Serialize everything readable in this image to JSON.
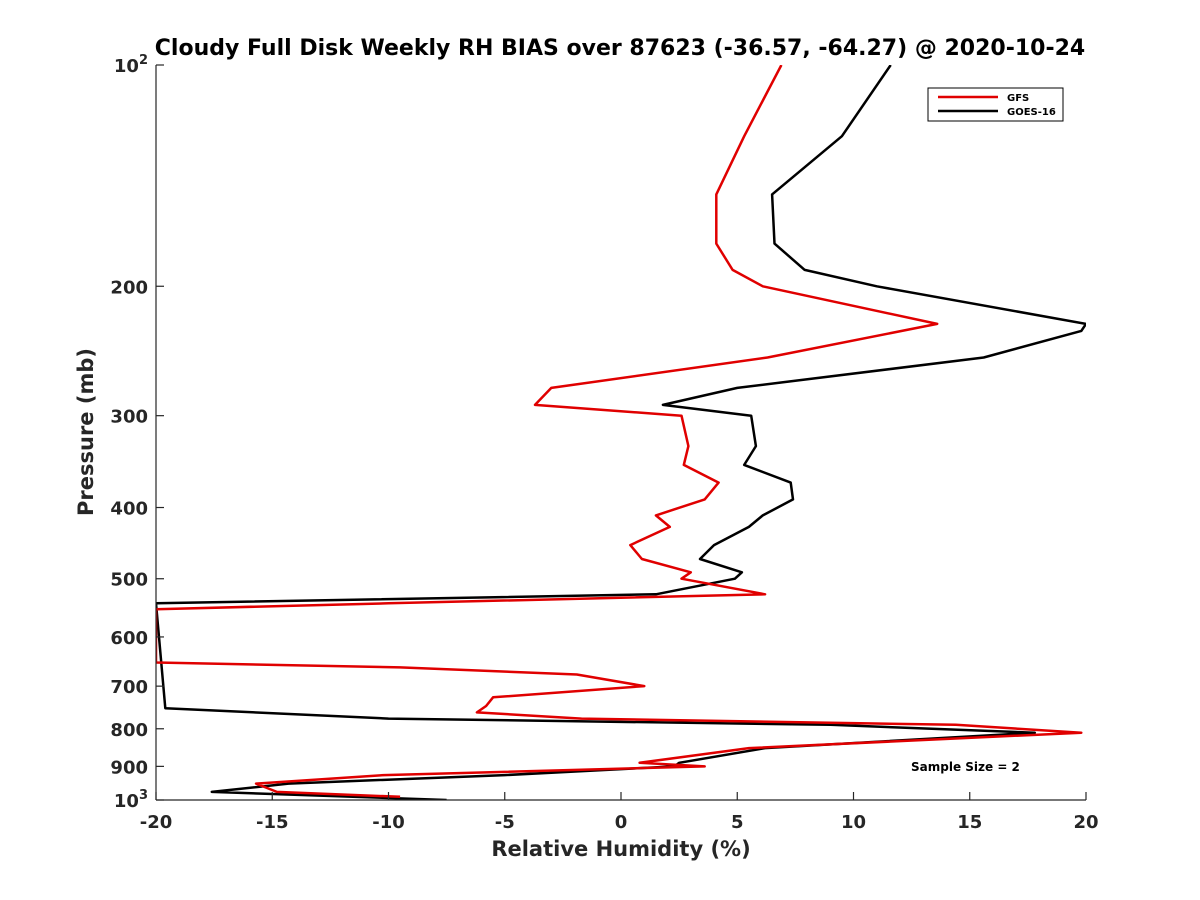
{
  "chart_data": {
    "type": "line",
    "title": "Cloudy Full Disk Weekly RH BIAS over 87623 (-36.57, -64.27) @ 2020-10-24",
    "xlabel": "Relative Humidity (%)",
    "ylabel": "Pressure (mb)",
    "xlim": [
      -20,
      20
    ],
    "ylim": [
      100,
      1000
    ],
    "y_scale": "log",
    "y_reversed": true,
    "grid": false,
    "legend_position": "top-right",
    "x_ticks": [
      "-20",
      "-15",
      "-10",
      "-5",
      "0",
      "5",
      "10",
      "15",
      "20"
    ],
    "y_ticks": [
      {
        "value": 100,
        "base": "10",
        "exp": "2"
      },
      {
        "value": 200,
        "label": "200"
      },
      {
        "value": 300,
        "label": "300"
      },
      {
        "value": 400,
        "label": "400"
      },
      {
        "value": 500,
        "label": "500"
      },
      {
        "value": 600,
        "label": "600"
      },
      {
        "value": 700,
        "label": "700"
      },
      {
        "value": 800,
        "label": "800"
      },
      {
        "value": 900,
        "label": "900"
      },
      {
        "value": 1000,
        "base": "10",
        "exp": "3"
      }
    ],
    "annotation": "Sample Size = 2",
    "series": [
      {
        "name": "GFS",
        "color": "#e00000",
        "points": [
          [
            6.9,
            100
          ],
          [
            5.3,
            125
          ],
          [
            4.1,
            150
          ],
          [
            4.1,
            175
          ],
          [
            4.8,
            190
          ],
          [
            6.1,
            200
          ],
          [
            13.6,
            225
          ],
          [
            6.3,
            250
          ],
          [
            -3.0,
            275
          ],
          [
            -3.7,
            290
          ],
          [
            2.6,
            300
          ],
          [
            2.9,
            330
          ],
          [
            2.7,
            350
          ],
          [
            4.2,
            370
          ],
          [
            3.6,
            390
          ],
          [
            1.5,
            410
          ],
          [
            2.1,
            425
          ],
          [
            0.4,
            450
          ],
          [
            0.9,
            470
          ],
          [
            3.0,
            490
          ],
          [
            2.6,
            500
          ],
          [
            6.2,
            525
          ],
          [
            -10.0,
            540
          ],
          [
            -20,
            550
          ],
          [
            -20,
            650
          ],
          [
            -9.5,
            660
          ],
          [
            -1.9,
            675
          ],
          [
            1.0,
            700
          ],
          [
            -5.5,
            725
          ],
          [
            -5.8,
            745
          ],
          [
            -6.2,
            760
          ],
          [
            -1.7,
            775
          ],
          [
            14.4,
            790
          ],
          [
            19.8,
            810
          ],
          [
            5.5,
            850
          ],
          [
            0.8,
            890
          ],
          [
            3.6,
            900
          ],
          [
            -10.2,
            925
          ],
          [
            -15.7,
            950
          ],
          [
            -14.8,
            975
          ],
          [
            -9.5,
            990
          ]
        ]
      },
      {
        "name": "GOES-16",
        "color": "#000000",
        "points": [
          [
            11.6,
            100
          ],
          [
            9.5,
            125
          ],
          [
            6.5,
            150
          ],
          [
            6.6,
            175
          ],
          [
            7.9,
            190
          ],
          [
            11.0,
            200
          ],
          [
            20.0,
            225
          ],
          [
            19.8,
            230
          ],
          [
            15.6,
            250
          ],
          [
            5.0,
            275
          ],
          [
            1.8,
            290
          ],
          [
            5.6,
            300
          ],
          [
            5.8,
            330
          ],
          [
            5.3,
            350
          ],
          [
            7.3,
            370
          ],
          [
            7.4,
            390
          ],
          [
            6.1,
            410
          ],
          [
            5.5,
            425
          ],
          [
            4.0,
            450
          ],
          [
            3.4,
            470
          ],
          [
            5.2,
            490
          ],
          [
            4.9,
            500
          ],
          [
            1.5,
            525
          ],
          [
            -20,
            540
          ],
          [
            -19.6,
            750
          ],
          [
            -10.0,
            775
          ],
          [
            9.0,
            790
          ],
          [
            17.8,
            810
          ],
          [
            6.2,
            850
          ],
          [
            2.5,
            890
          ],
          [
            2.3,
            900
          ],
          [
            -5.0,
            925
          ],
          [
            -14.3,
            950
          ],
          [
            -17.6,
            975
          ],
          [
            -7.5,
            1000
          ]
        ]
      }
    ]
  }
}
